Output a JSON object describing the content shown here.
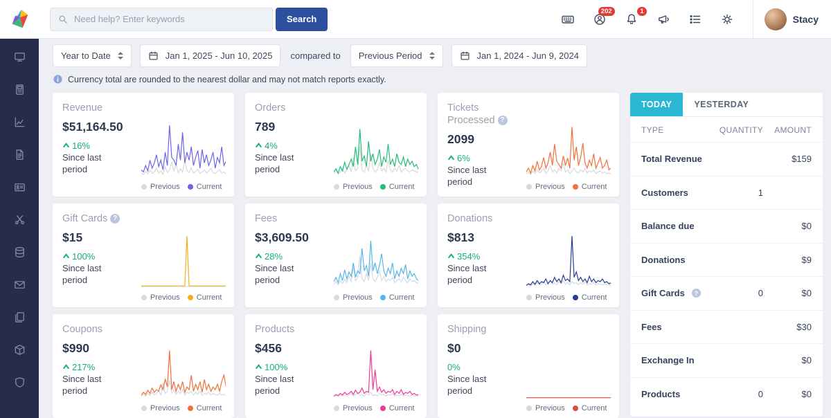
{
  "colors": {
    "accent_positive": "#10b278",
    "badge": "#e23b35",
    "tab_active": "#29b7d3",
    "previous_series": "#d6d9de",
    "search_button": "#2d4fa0"
  },
  "header": {
    "search": {
      "placeholder": "Need help? Enter keywords",
      "button_label": "Search"
    },
    "icons": [
      {
        "name": "keyboard-icon"
      },
      {
        "name": "support-icon",
        "badge": "202"
      },
      {
        "name": "notifications-icon",
        "badge": "1"
      },
      {
        "name": "announcements-icon"
      },
      {
        "name": "tasks-icon"
      },
      {
        "name": "settings-icon"
      }
    ],
    "user": {
      "name": "Stacy"
    }
  },
  "sidebar": {
    "items": [
      {
        "icon": "dashboard-icon"
      },
      {
        "icon": "terminal-icon"
      },
      {
        "icon": "analytics-icon"
      },
      {
        "icon": "invoices-icon"
      },
      {
        "icon": "members-icon"
      },
      {
        "icon": "tools-icon"
      },
      {
        "icon": "storage-icon"
      },
      {
        "icon": "email-icon"
      },
      {
        "icon": "documents-icon"
      },
      {
        "icon": "orders-icon"
      },
      {
        "icon": "shield-icon"
      }
    ]
  },
  "filters": {
    "period": "Year to Date",
    "primary_range": "Jan 1, 2025 - Jun 10, 2025",
    "compared_to": "compared to",
    "compare_period": "Previous Period",
    "compare_range": "Jan 1, 2024 - Jun 9, 2024",
    "note": "Currency total are rounded to the nearest dollar and may not match reports exactly."
  },
  "legend": {
    "previous": "Previous",
    "current": "Current"
  },
  "cards": [
    {
      "title": "Revenue",
      "value": "$51,164.50",
      "change": "16%",
      "arrow": true,
      "help": false,
      "since": "Since last period",
      "color": "#6f63e8",
      "spark": {
        "previous": [
          6,
          3,
          9,
          4,
          12,
          5,
          8,
          15,
          6,
          10,
          4,
          18,
          7,
          12,
          26,
          9,
          22,
          6,
          14,
          8,
          30,
          11,
          7,
          16,
          6,
          9,
          13,
          5,
          8,
          12,
          6,
          10,
          15,
          7,
          5,
          9,
          12,
          6,
          8,
          4
        ],
        "current": [
          12,
          8,
          20,
          10,
          30,
          15,
          25,
          40,
          18,
          30,
          12,
          45,
          20,
          95,
          35,
          30,
          20,
          60,
          30,
          82,
          25,
          45,
          30,
          55,
          20,
          35,
          48,
          15,
          50,
          25,
          40,
          20,
          30,
          45,
          15,
          35,
          25,
          55,
          20,
          28
        ]
      }
    },
    {
      "title": "Orders",
      "value": "789",
      "change": "4%",
      "arrow": true,
      "help": false,
      "since": "Since last period",
      "color": "#23bd79",
      "spark": {
        "previous": [
          5,
          10,
          4,
          8,
          15,
          6,
          12,
          20,
          8,
          35,
          10,
          15,
          55,
          12,
          8,
          20,
          10,
          42,
          15,
          8,
          12,
          25,
          10,
          15,
          8,
          30,
          12,
          8,
          15,
          10,
          20,
          8,
          12,
          15,
          10,
          8,
          12,
          10,
          8,
          6
        ],
        "current": [
          8,
          14,
          6,
          18,
          10,
          26,
          13,
          22,
          32,
          18,
          55,
          22,
          88,
          28,
          38,
          18,
          65,
          28,
          42,
          22,
          32,
          50,
          18,
          36,
          26,
          60,
          22,
          32,
          18,
          42,
          26,
          22,
          36,
          18,
          32,
          22,
          28,
          18,
          22,
          12
        ]
      }
    },
    {
      "title": "Tickets Processed",
      "value": "2099",
      "change": "6%",
      "arrow": true,
      "help": true,
      "since": "Since last period",
      "color": "#f3703a",
      "spark": {
        "previous": [
          4,
          8,
          3,
          10,
          5,
          12,
          6,
          9,
          15,
          5,
          10,
          20,
          8,
          12,
          6,
          15,
          10,
          25,
          8,
          12,
          5,
          10,
          15,
          8,
          6,
          12,
          8,
          15,
          6,
          10,
          8,
          12,
          5,
          8,
          10,
          6,
          8,
          5,
          6,
          4
        ],
        "current": [
          8,
          15,
          6,
          20,
          10,
          28,
          12,
          18,
          35,
          15,
          25,
          45,
          20,
          60,
          28,
          22,
          15,
          38,
          20,
          34,
          15,
          92,
          30,
          55,
          20,
          35,
          62,
          25,
          15,
          30,
          20,
          42,
          15,
          25,
          35,
          15,
          20,
          30,
          12,
          16
        ]
      }
    },
    {
      "title": "Gift Cards",
      "value": "$15",
      "change": "100%",
      "arrow": true,
      "help": true,
      "since": "Since last period",
      "color": "#f2b01e",
      "spark": {
        "previous": [
          1,
          1,
          1,
          1,
          1,
          1,
          1,
          1,
          1,
          1,
          1,
          1,
          1,
          1,
          1,
          1,
          1,
          2,
          1,
          1,
          1,
          1,
          1,
          1,
          1,
          1,
          1,
          1,
          1,
          1,
          1,
          1,
          1,
          1,
          1,
          1,
          1,
          1,
          1,
          1
        ],
        "current": [
          2,
          2,
          2,
          2,
          2,
          2,
          2,
          2,
          2,
          2,
          2,
          2,
          2,
          2,
          2,
          2,
          2,
          2,
          2,
          2,
          2,
          95,
          2,
          2,
          2,
          2,
          2,
          2,
          2,
          2,
          2,
          2,
          2,
          2,
          2,
          2,
          2,
          2,
          2,
          2
        ]
      }
    },
    {
      "title": "Fees",
      "value": "$3,609.50",
      "change": "28%",
      "arrow": true,
      "help": false,
      "since": "Since last period",
      "color": "#54b7ea",
      "spark": {
        "previous": [
          5,
          10,
          4,
          12,
          6,
          15,
          8,
          20,
          10,
          35,
          12,
          18,
          58,
          15,
          10,
          25,
          12,
          45,
          15,
          10,
          18,
          30,
          12,
          20,
          10,
          15,
          12,
          18,
          8,
          12,
          15,
          10,
          18,
          12,
          8,
          15,
          10,
          12,
          8,
          6
        ],
        "current": [
          10,
          18,
          8,
          25,
          12,
          32,
          15,
          28,
          20,
          45,
          18,
          30,
          25,
          72,
          30,
          40,
          20,
          86,
          30,
          45,
          25,
          40,
          62,
          30,
          20,
          35,
          25,
          45,
          15,
          30,
          20,
          35,
          25,
          42,
          15,
          30,
          20,
          25,
          15,
          12
        ]
      }
    },
    {
      "title": "Donations",
      "value": "$813",
      "change": "354%",
      "arrow": true,
      "help": false,
      "since": "Since last period",
      "color": "#273e8f",
      "spark": {
        "previous": [
          2,
          4,
          2,
          6,
          3,
          8,
          4,
          6,
          10,
          4,
          8,
          12,
          5,
          8,
          4,
          10,
          6,
          12,
          5,
          8,
          4,
          10,
          6,
          8,
          4,
          8,
          5,
          10,
          4,
          6,
          5,
          8,
          4,
          6,
          5,
          4,
          6,
          4,
          5,
          3
        ],
        "current": [
          3,
          6,
          4,
          10,
          5,
          12,
          6,
          10,
          8,
          15,
          6,
          12,
          8,
          18,
          10,
          15,
          8,
          22,
          12,
          15,
          10,
          95,
          18,
          28,
          12,
          18,
          10,
          15,
          8,
          20,
          10,
          15,
          8,
          12,
          10,
          15,
          8,
          10,
          6,
          8
        ]
      }
    },
    {
      "title": "Coupons",
      "value": "$990",
      "change": "217%",
      "arrow": true,
      "help": false,
      "since": "Since last period",
      "color": "#ed713c",
      "spark": {
        "previous": [
          3,
          6,
          3,
          8,
          4,
          10,
          5,
          8,
          12,
          5,
          28,
          8,
          12,
          32,
          8,
          15,
          6,
          12,
          8,
          15,
          5,
          10,
          8,
          12,
          5,
          10,
          6,
          12,
          5,
          8,
          6,
          10,
          5,
          8,
          6,
          5,
          8,
          5,
          6,
          4
        ],
        "current": [
          5,
          10,
          6,
          14,
          8,
          18,
          10,
          15,
          12,
          24,
          15,
          35,
          20,
          88,
          15,
          30,
          12,
          25,
          15,
          30,
          10,
          20,
          15,
          42,
          12,
          25,
          15,
          30,
          10,
          34,
          15,
          25,
          12,
          20,
          15,
          25,
          12,
          30,
          42,
          20
        ]
      }
    },
    {
      "title": "Products",
      "value": "$456",
      "change": "100%",
      "arrow": true,
      "help": false,
      "since": "Since last period",
      "color": "#ee3a97",
      "spark": {
        "previous": [
          2,
          4,
          2,
          5,
          3,
          6,
          3,
          5,
          8,
          3,
          6,
          8,
          4,
          6,
          3,
          8,
          5,
          10,
          4,
          6,
          3,
          8,
          5,
          6,
          3,
          6,
          4,
          8,
          3,
          5,
          4,
          6,
          3,
          5,
          4,
          3,
          5,
          3,
          4,
          2
        ],
        "current": [
          3,
          6,
          4,
          8,
          5,
          10,
          6,
          8,
          12,
          6,
          14,
          8,
          10,
          18,
          8,
          12,
          10,
          88,
          15,
          52,
          12,
          20,
          10,
          15,
          8,
          12,
          10,
          15,
          6,
          12,
          8,
          15,
          6,
          10,
          8,
          12,
          6,
          8,
          5,
          6
        ]
      }
    },
    {
      "title": "Shipping",
      "value": "$0",
      "change": "0%",
      "arrow": false,
      "help": false,
      "since": "Since last period",
      "color": "#e04b3b",
      "spark": {
        "previous": [
          0,
          0,
          0,
          0,
          0,
          0,
          0,
          0,
          0,
          0,
          0,
          0,
          0,
          0,
          0,
          0,
          0,
          0,
          0,
          0,
          0,
          0,
          0,
          0,
          0,
          0,
          0,
          0,
          0,
          0,
          0,
          0,
          0,
          0,
          0,
          0,
          0,
          0,
          0,
          0
        ],
        "current": [
          0,
          0,
          0,
          0,
          0,
          0,
          0,
          0,
          0,
          0,
          0,
          0,
          0,
          0,
          0,
          0,
          0,
          0,
          0,
          0,
          0,
          0,
          0,
          0,
          0,
          0,
          0,
          0,
          0,
          0,
          0,
          0,
          0,
          0,
          0,
          0,
          0,
          0,
          0,
          0
        ]
      }
    }
  ],
  "panel": {
    "tabs": [
      {
        "label": "TODAY",
        "active": true
      },
      {
        "label": "YESTERDAY",
        "active": false
      }
    ],
    "columns": [
      "TYPE",
      "QUANTITY",
      "AMOUNT"
    ],
    "rows": [
      {
        "type": "Total Revenue",
        "quantity": "",
        "amount": "$159",
        "help": false
      },
      {
        "type": "Customers",
        "quantity": "1",
        "amount": "",
        "help": false
      },
      {
        "type": "Balance due",
        "quantity": "",
        "amount": "$0",
        "help": false
      },
      {
        "type": "Donations",
        "quantity": "",
        "amount": "$9",
        "help": false
      },
      {
        "type": "Gift Cards",
        "quantity": "0",
        "amount": "$0",
        "help": true
      },
      {
        "type": "Fees",
        "quantity": "",
        "amount": "$30",
        "help": false
      },
      {
        "type": "Exchange In",
        "quantity": "",
        "amount": "$0",
        "help": false
      },
      {
        "type": "Products",
        "quantity": "0",
        "amount": "$0",
        "help": false
      }
    ]
  }
}
